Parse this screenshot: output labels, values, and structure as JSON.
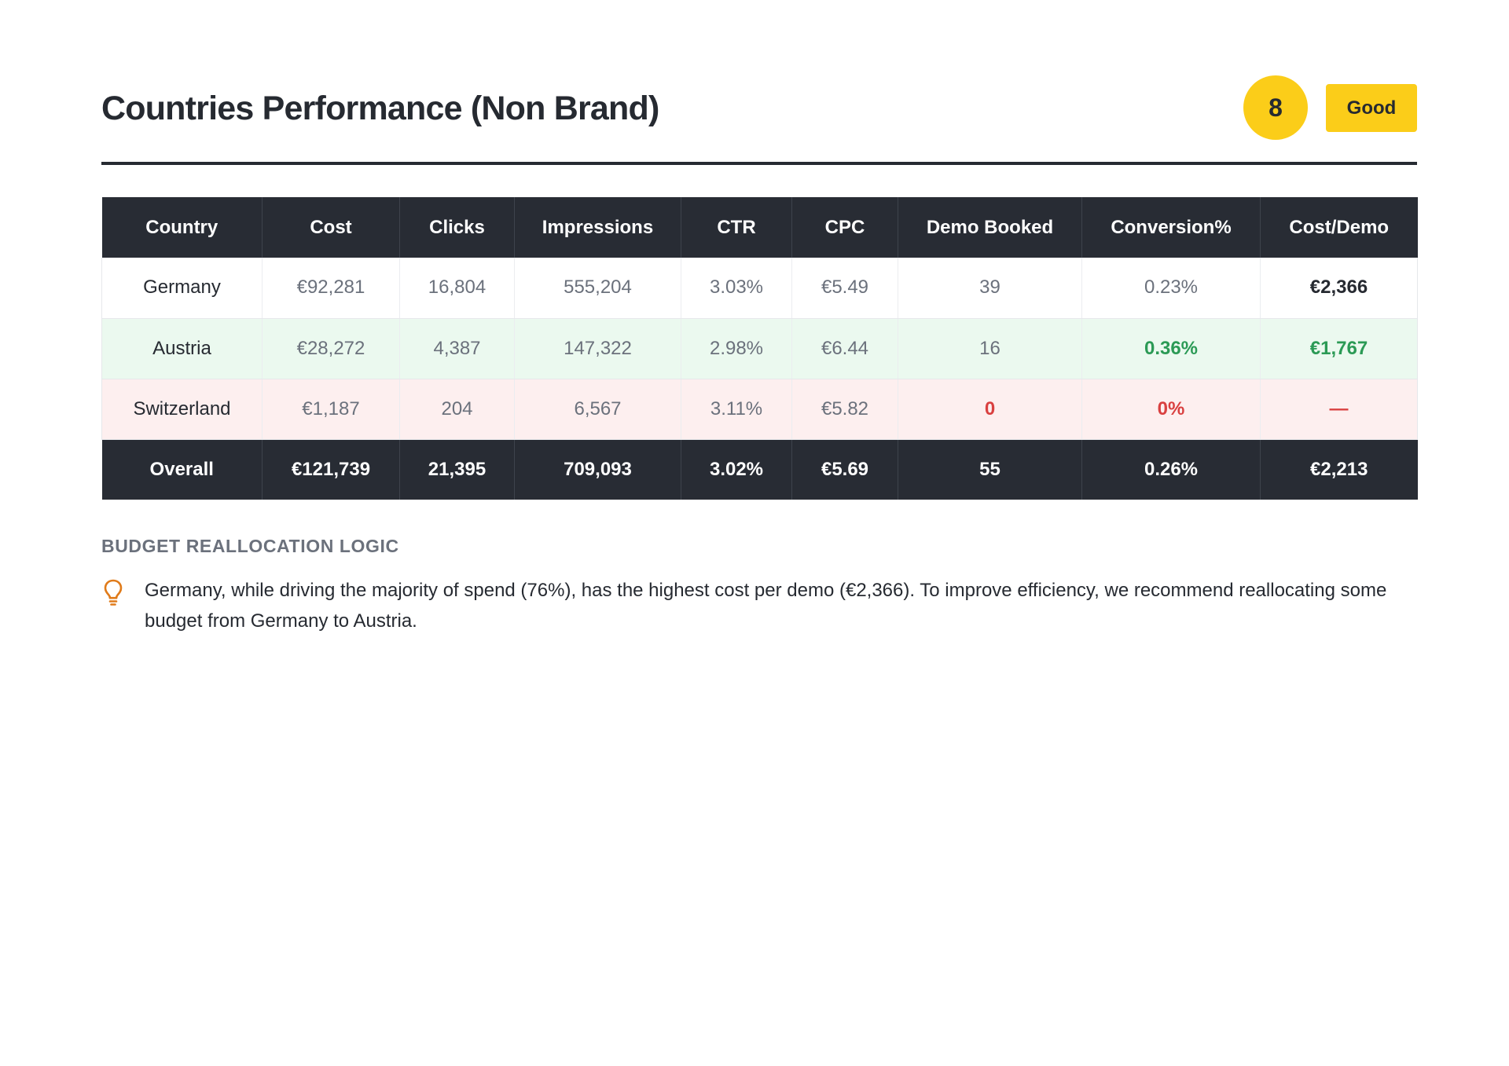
{
  "header": {
    "title": "Countries Performance (Non Brand)",
    "score": "8",
    "rating": "Good",
    "score_color": "#fbcd19"
  },
  "table": {
    "columns": [
      "Country",
      "Cost",
      "Clicks",
      "Impressions",
      "CTR",
      "CPC",
      "Demo Booked",
      "Conversion%",
      "Cost/Demo"
    ],
    "rows": [
      {
        "country": "Germany",
        "cost": "€92,281",
        "clicks": "16,804",
        "impressions": "555,204",
        "ctr": "3.03%",
        "cpc": "€5.49",
        "demo_booked": "39",
        "conversion": "0.23%",
        "cost_per_demo": "€2,366",
        "highlight": "neutral"
      },
      {
        "country": "Austria",
        "cost": "€28,272",
        "clicks": "4,387",
        "impressions": "147,322",
        "ctr": "2.98%",
        "cpc": "€6.44",
        "demo_booked": "16",
        "conversion": "0.36%",
        "cost_per_demo": "€1,767",
        "highlight": "good"
      },
      {
        "country": "Switzerland",
        "cost": "€1,187",
        "clicks": "204",
        "impressions": "6,567",
        "ctr": "3.11%",
        "cpc": "€5.82",
        "demo_booked": "0",
        "conversion": "0%",
        "cost_per_demo": "—",
        "highlight": "bad"
      }
    ],
    "total": {
      "country": "Overall",
      "cost": "€121,739",
      "clicks": "21,395",
      "impressions": "709,093",
      "ctr": "3.02%",
      "cpc": "€5.69",
      "demo_booked": "55",
      "conversion": "0.26%",
      "cost_per_demo": "€2,213"
    },
    "colors": {
      "header_bg": "#282c34",
      "good_row_bg": "#ebf9ef",
      "bad_row_bg": "#fdefef",
      "good_text": "#2b9a55",
      "bad_text": "#d94040"
    }
  },
  "insight": {
    "heading": "BUDGET REALLOCATION LOGIC",
    "icon": "lightbulb-icon",
    "icon_color": "#e07b1a",
    "text": "Germany, while driving the majority of spend (76%), has the highest cost per demo (€2,366). To improve efficiency, we recommend reallocating some budget from Germany to Austria."
  }
}
